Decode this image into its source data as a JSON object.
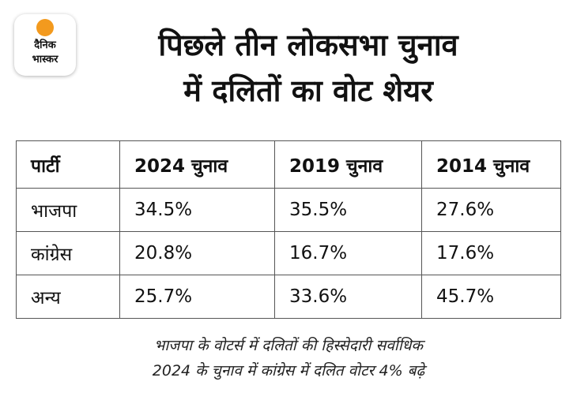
{
  "logo": {
    "lines": [
      "दैनिक",
      "भास्कर"
    ]
  },
  "header": {
    "title_lines": [
      "पिछले तीन लोकसभा चुनाव",
      "में दलितों का वोट शेयर"
    ]
  },
  "table": {
    "columns": [
      "पार्टी",
      "2024 चुनाव",
      "2019 चुनाव",
      "2014 चुनाव"
    ],
    "rows": [
      [
        "भाजपा",
        "34.5%",
        "35.5%",
        "27.6%"
      ],
      [
        "कांग्रेस",
        "20.8%",
        "16.7%",
        "17.6%"
      ],
      [
        "अन्य",
        "25.7%",
        "33.6%",
        "45.7%"
      ]
    ]
  },
  "footer": {
    "lines": [
      "भाजपा के वोटर्स में दलितों की हिस्सेदारी सर्वाधिक",
      "2024 के चुनाव में कांग्रेस में दलित वोटर 4% बढ़े"
    ]
  }
}
